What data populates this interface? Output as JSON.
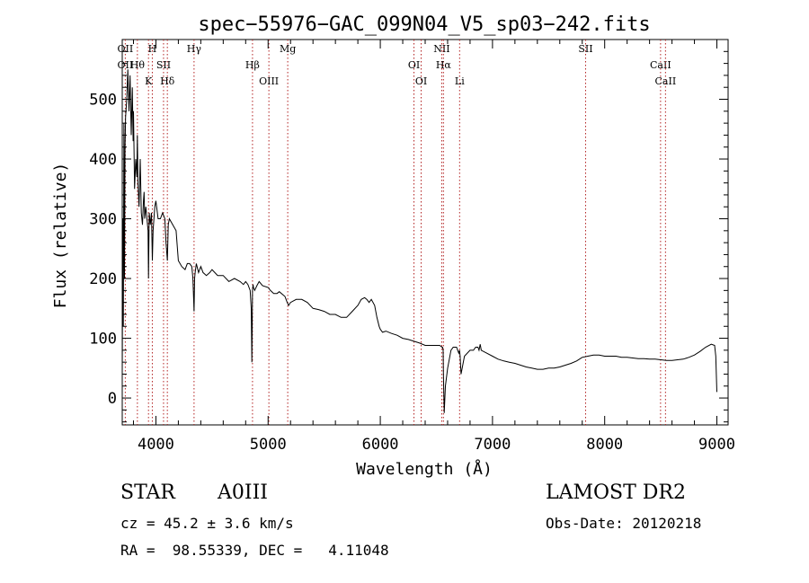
{
  "chart_data": {
    "type": "line",
    "title": "spec−55976−GAC_099N04_V5_sp03−242.fits",
    "xlabel": "Wavelength (Å)",
    "ylabel": "Flux (relative)",
    "xlim": [
      3700,
      9100
    ],
    "ylim": [
      -45,
      600
    ],
    "xticks": [
      4000,
      5000,
      6000,
      7000,
      8000,
      9000
    ],
    "yticks": [
      0,
      100,
      200,
      300,
      400,
      500
    ],
    "grid": false,
    "series": [
      {
        "x": [
          3700,
          3705,
          3710,
          3715,
          3720,
          3725,
          3730,
          3740,
          3750,
          3760,
          3770,
          3780,
          3790,
          3797,
          3800,
          3810,
          3820,
          3830,
          3835,
          3840,
          3850,
          3860,
          3870,
          3880,
          3889,
          3895,
          3900,
          3910,
          3920,
          3930,
          3934,
          3940,
          3950,
          3960,
          3968,
          3975,
          3990,
          4000,
          4020,
          4040,
          4060,
          4080,
          4090,
          4102,
          4110,
          4120,
          4150,
          4180,
          4200,
          4230,
          4260,
          4280,
          4300,
          4320,
          4330,
          4340,
          4345,
          4350,
          4360,
          4380,
          4400,
          4420,
          4450,
          4480,
          4500,
          4550,
          4600,
          4650,
          4700,
          4750,
          4780,
          4800,
          4820,
          4840,
          4850,
          4855,
          4861,
          4866,
          4870,
          4880,
          4900,
          4920,
          4950,
          5000,
          5020,
          5050,
          5080,
          5100,
          5150,
          5170,
          5183,
          5200,
          5250,
          5300,
          5350,
          5400,
          5450,
          5500,
          5550,
          5600,
          5650,
          5700,
          5750,
          5800,
          5830,
          5860,
          5880,
          5900,
          5920,
          5950,
          5970,
          5990,
          6000,
          6020,
          6050,
          6100,
          6150,
          6200,
          6250,
          6300,
          6350,
          6400,
          6450,
          6500,
          6530,
          6550,
          6555,
          6560,
          6563,
          6566,
          6570,
          6580,
          6600,
          6630,
          6650,
          6680,
          6700,
          6707,
          6712,
          6720,
          6750,
          6800,
          6830,
          6850,
          6870,
          6880,
          6890,
          6900,
          6950,
          7000,
          7050,
          7100,
          7150,
          7200,
          7250,
          7300,
          7350,
          7400,
          7450,
          7500,
          7550,
          7600,
          7650,
          7700,
          7750,
          7800,
          7850,
          7900,
          7950,
          8000,
          8050,
          8100,
          8150,
          8200,
          8250,
          8300,
          8350,
          8400,
          8450,
          8500,
          8550,
          8600,
          8650,
          8700,
          8750,
          8800,
          8850,
          8900,
          8950,
          8980,
          8990,
          9000
        ],
        "y": [
          40,
          300,
          120,
          460,
          200,
          420,
          470,
          500,
          550,
          480,
          540,
          440,
          520,
          430,
          480,
          350,
          400,
          370,
          440,
          360,
          320,
          400,
          310,
          290,
          330,
          345,
          300,
          320,
          300,
          280,
          200,
          310,
          290,
          310,
          230,
          280,
          320,
          330,
          300,
          300,
          310,
          300,
          260,
          230,
          290,
          300,
          290,
          280,
          230,
          220,
          215,
          225,
          225,
          220,
          200,
          145,
          200,
          210,
          225,
          210,
          220,
          210,
          205,
          210,
          215,
          205,
          205,
          195,
          200,
          195,
          190,
          195,
          190,
          180,
          150,
          60,
          180,
          190,
          185,
          180,
          188,
          195,
          188,
          185,
          180,
          175,
          175,
          178,
          170,
          160,
          155,
          160,
          165,
          165,
          160,
          150,
          148,
          145,
          140,
          140,
          135,
          135,
          145,
          155,
          165,
          168,
          165,
          160,
          165,
          155,
          135,
          120,
          115,
          110,
          112,
          108,
          105,
          100,
          98,
          95,
          92,
          88,
          88,
          88,
          88,
          85,
          85,
          80,
          40,
          10,
          -25,
          20,
          50,
          80,
          85,
          85,
          75,
          80,
          70,
          40,
          70,
          80,
          80,
          85,
          85,
          80,
          90,
          80,
          75,
          70,
          65,
          62,
          60,
          58,
          55,
          52,
          50,
          48,
          48,
          50,
          50,
          52,
          55,
          58,
          62,
          68,
          70,
          72,
          72,
          70,
          70,
          70,
          68,
          68,
          67,
          66,
          66,
          65,
          65,
          64,
          63,
          63,
          64,
          65,
          68,
          72,
          78,
          85,
          90,
          88,
          70,
          10
        ]
      }
    ],
    "lines": [
      {
        "x": 3727,
        "label": "OII",
        "label_b": "OII"
      },
      {
        "x": 3835,
        "label": "Hθ",
        "label_b": ""
      },
      {
        "x": 3934,
        "label": "K",
        "label_b": ""
      },
      {
        "x": 3968,
        "label": "H",
        "label_b": ""
      },
      {
        "x": 4068,
        "label": "SII",
        "label_b": ""
      },
      {
        "x": 4102,
        "label": "Hδ",
        "label_b": ""
      },
      {
        "x": 4340,
        "label": "Hγ",
        "label_b": ""
      },
      {
        "x": 4861,
        "label": "Hβ",
        "label_b": ""
      },
      {
        "x": 5007,
        "label": "OIII",
        "label_b": ""
      },
      {
        "x": 5175,
        "label": "Mg",
        "label_b": ""
      },
      {
        "x": 6300,
        "label": "OI",
        "label_b": ""
      },
      {
        "x": 6364,
        "label": "OI",
        "label_b": ""
      },
      {
        "x": 6548,
        "label": "NII",
        "label_b": ""
      },
      {
        "x": 6563,
        "label": "Hα",
        "label_b": ""
      },
      {
        "x": 6707,
        "label": "Li",
        "label_b": ""
      },
      {
        "x": 7830,
        "label": "SII",
        "label_b": ""
      },
      {
        "x": 8498,
        "label": "CaII",
        "label_b": ""
      },
      {
        "x": 8542,
        "label": "CaII",
        "label_b": ""
      }
    ]
  },
  "info": {
    "class": "STAR",
    "subclass": "A0III",
    "survey": "LAMOST DR2",
    "cz": "cz = 45.2 ± 3.6 km/s",
    "obs_date": "Obs-Date: 20120218",
    "radec": "RA =  98.55339, DEC =   4.11048"
  },
  "colors": {
    "spectrum": "#000000",
    "line_marker": "#b22222",
    "axis": "#000000"
  }
}
